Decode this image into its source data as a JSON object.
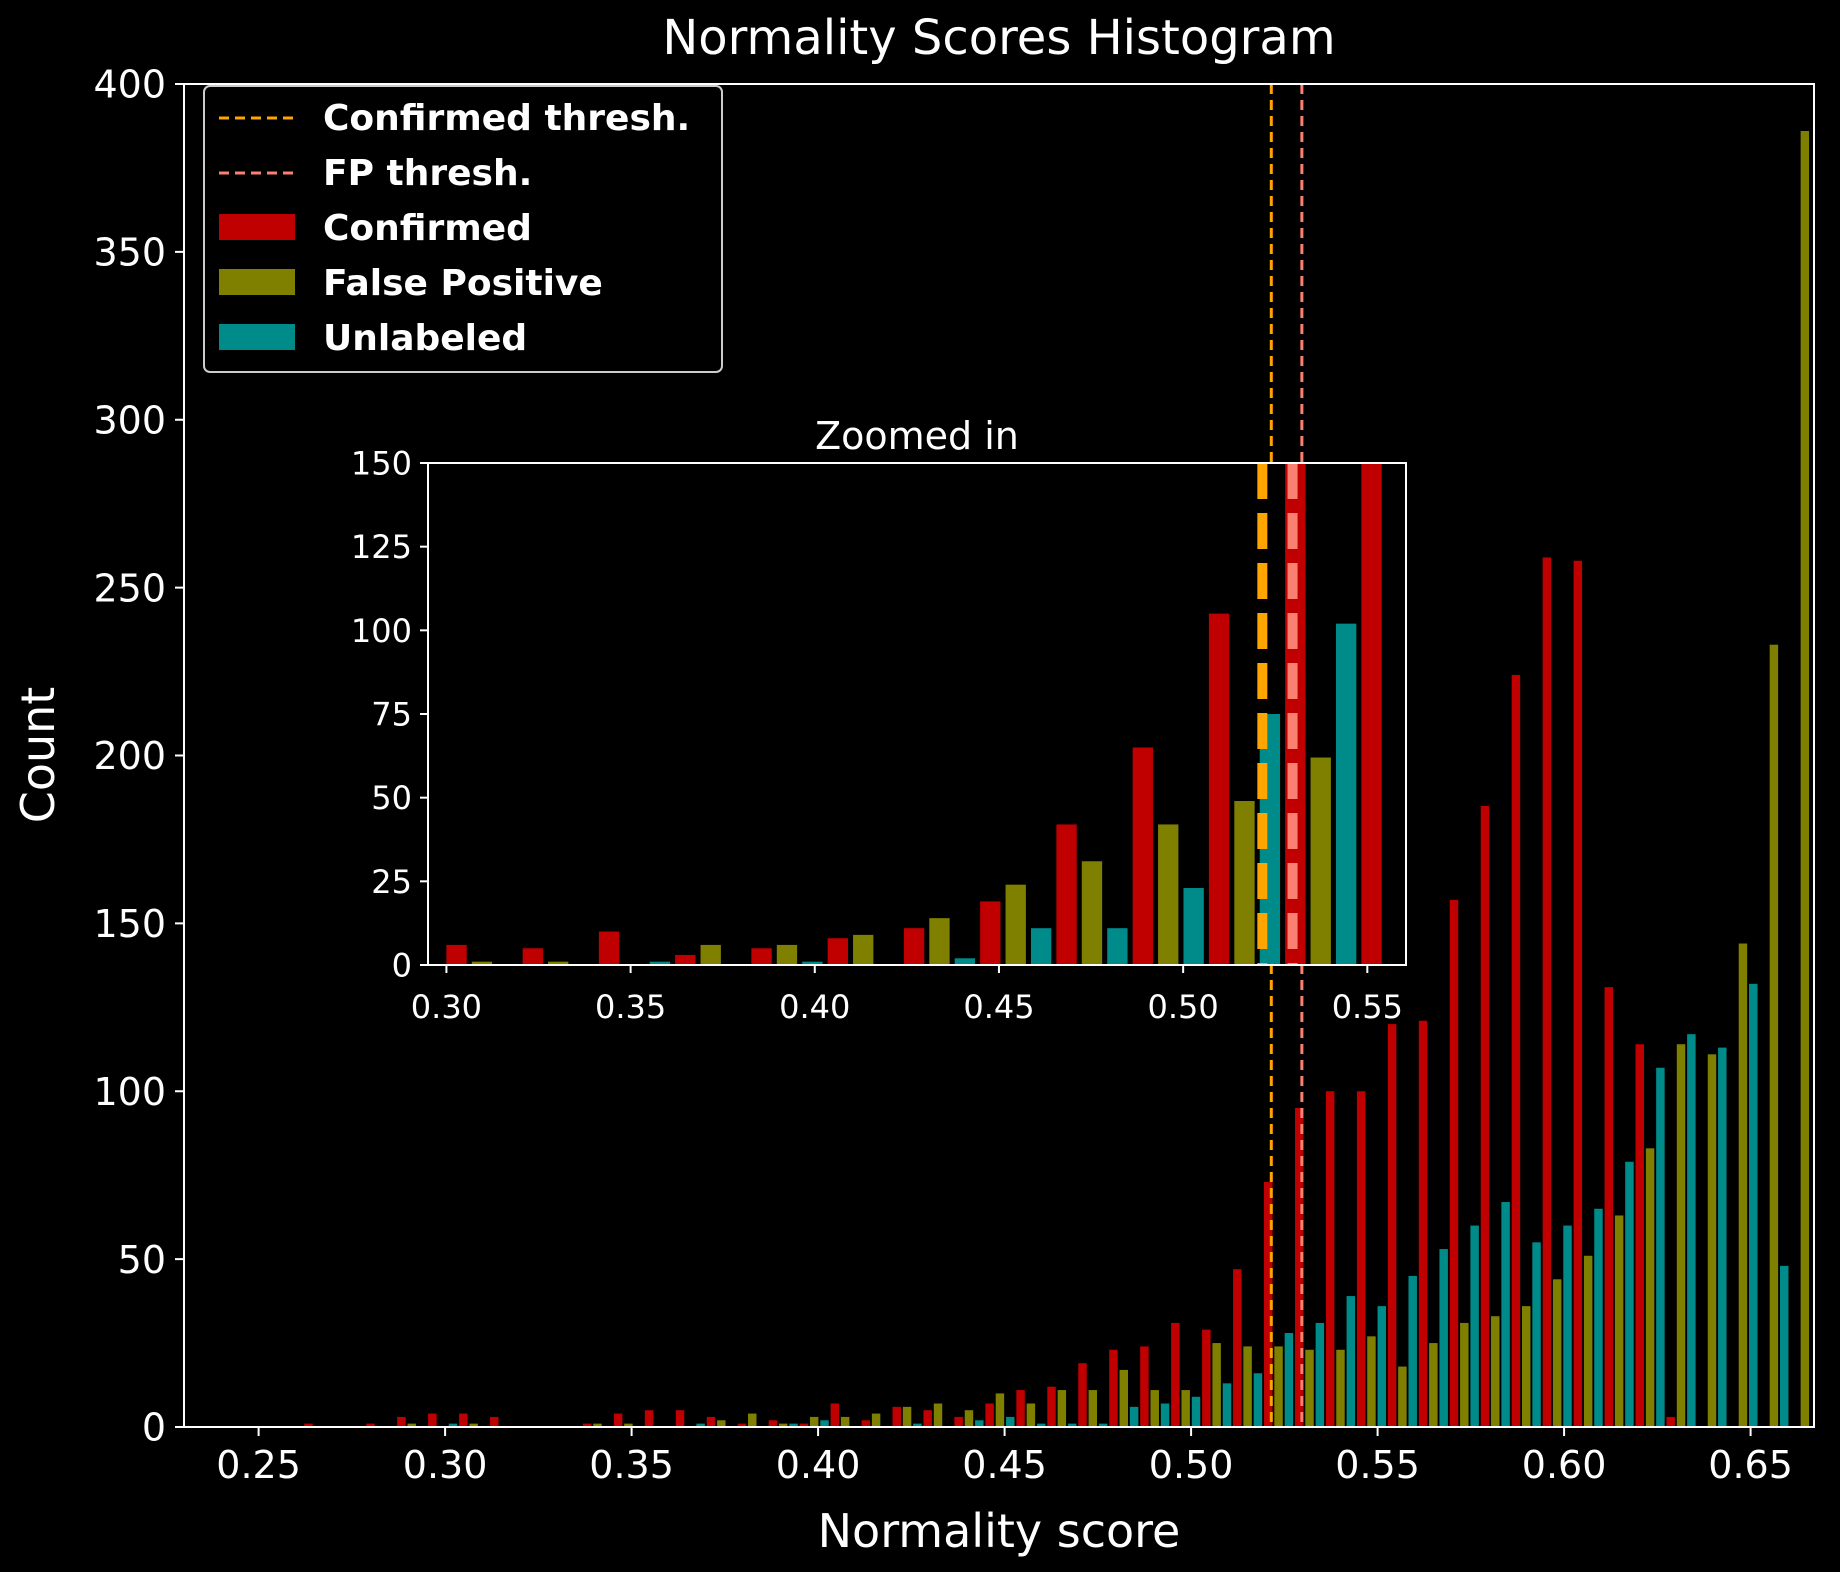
{
  "chart_data": [
    {
      "id": "main",
      "type": "bar",
      "title": "Normality Scores Histogram",
      "xlabel": "Normality score",
      "ylabel": "Count",
      "xlim": [
        0.23,
        0.667
      ],
      "ylim": [
        0,
        400
      ],
      "xticks": [
        0.25,
        0.3,
        0.35,
        0.4,
        0.45,
        0.5,
        0.55,
        0.6,
        0.65
      ],
      "xtick_labels": [
        "0.25",
        "0.30",
        "0.35",
        "0.40",
        "0.45",
        "0.50",
        "0.55",
        "0.60",
        "0.65"
      ],
      "yticks": [
        0,
        50,
        100,
        150,
        200,
        250,
        300,
        350,
        400
      ],
      "ytick_labels": [
        "0",
        "50",
        "100",
        "150",
        "200",
        "250",
        "300",
        "350",
        "400"
      ],
      "bin_start": 0.2537,
      "bin_width": 0.0083,
      "series": [
        {
          "name": "Confirmed",
          "color": "#c00000",
          "values": [
            0,
            1,
            0,
            1,
            3,
            4,
            4,
            3,
            0,
            0,
            1,
            4,
            5,
            5,
            3,
            1,
            2,
            1,
            7,
            2,
            6,
            5,
            3,
            7,
            11,
            12,
            19,
            23,
            24,
            31,
            29,
            47,
            73,
            95,
            100,
            100,
            120,
            121,
            157,
            185,
            224,
            259,
            258,
            131,
            114,
            3,
            0,
            0
          ]
        },
        {
          "name": "False Positive",
          "color": "#808000",
          "values": [
            0,
            0,
            0,
            0,
            1,
            0,
            1,
            0,
            0,
            0,
            1,
            1,
            0,
            0,
            2,
            4,
            1,
            3,
            3,
            4,
            6,
            7,
            5,
            10,
            7,
            11,
            11,
            17,
            11,
            11,
            25,
            24,
            24,
            23,
            23,
            27,
            18,
            25,
            31,
            33,
            36,
            44,
            51,
            63,
            83,
            114,
            111,
            144,
            233,
            386
          ]
        },
        {
          "name": "Unlabeled",
          "color": "#008b8b",
          "values": [
            0,
            0,
            0,
            0,
            0,
            1,
            0,
            0,
            0,
            0,
            0,
            0,
            0,
            1,
            0,
            0,
            1,
            2,
            0,
            0,
            1,
            0,
            2,
            3,
            1,
            1,
            1,
            6,
            7,
            9,
            13,
            16,
            28,
            31,
            39,
            36,
            45,
            53,
            60,
            67,
            55,
            60,
            65,
            79,
            107,
            117,
            113,
            132,
            48
          ]
        }
      ],
      "thresholds": [
        {
          "name": "Confirmed thresh.",
          "x": 0.5215,
          "color": "#ffa500"
        },
        {
          "name": "FP thresh.",
          "x": 0.5297,
          "color": "#fa8072"
        }
      ],
      "legend": {
        "placement": "top-left",
        "entries": [
          {
            "label": "Confirmed thresh.",
            "kind": "dashed-line",
            "color": "#ffa500"
          },
          {
            "label": "FP thresh.",
            "kind": "dashed-line",
            "color": "#fa8072"
          },
          {
            "label": "Confirmed",
            "kind": "patch",
            "color": "#c00000"
          },
          {
            "label": "False Positive",
            "kind": "patch",
            "color": "#808000"
          },
          {
            "label": "Unlabeled",
            "kind": "patch",
            "color": "#008b8b"
          }
        ]
      }
    },
    {
      "id": "inset",
      "type": "bar",
      "title": "Zoomed in",
      "xlabel": "",
      "ylabel": "",
      "xlim": [
        0.295,
        0.5605
      ],
      "ylim": [
        0,
        150
      ],
      "xticks": [
        0.3,
        0.35,
        0.4,
        0.45,
        0.5,
        0.55
      ],
      "xtick_labels": [
        "0.30",
        "0.35",
        "0.40",
        "0.45",
        "0.50",
        "0.55"
      ],
      "yticks": [
        0,
        25,
        50,
        75,
        100,
        125,
        150
      ],
      "ytick_labels": [
        "0",
        "25",
        "50",
        "75",
        "100",
        "125",
        "150"
      ],
      "bin_start": 0.2993,
      "bin_width": 0.0207,
      "series": [
        {
          "name": "Confirmed",
          "color": "#c00000",
          "values": [
            6,
            5,
            10,
            3,
            5,
            8,
            11,
            19,
            42,
            65,
            105,
            150,
            150
          ]
        },
        {
          "name": "False Positive",
          "color": "#808000",
          "values": [
            1,
            1,
            0,
            6,
            6,
            9,
            14,
            24,
            31,
            42,
            49,
            62
          ]
        },
        {
          "name": "Unlabeled",
          "color": "#008b8b",
          "values": [
            0,
            0,
            1,
            0,
            1,
            0,
            2,
            11,
            11,
            23,
            75,
            102
          ]
        }
      ],
      "thresholds": [
        {
          "name": "Confirmed thresh.",
          "x": 0.5215,
          "color": "#ffa500"
        },
        {
          "name": "FP thresh.",
          "x": 0.5297,
          "color": "#fa8072"
        }
      ]
    }
  ]
}
